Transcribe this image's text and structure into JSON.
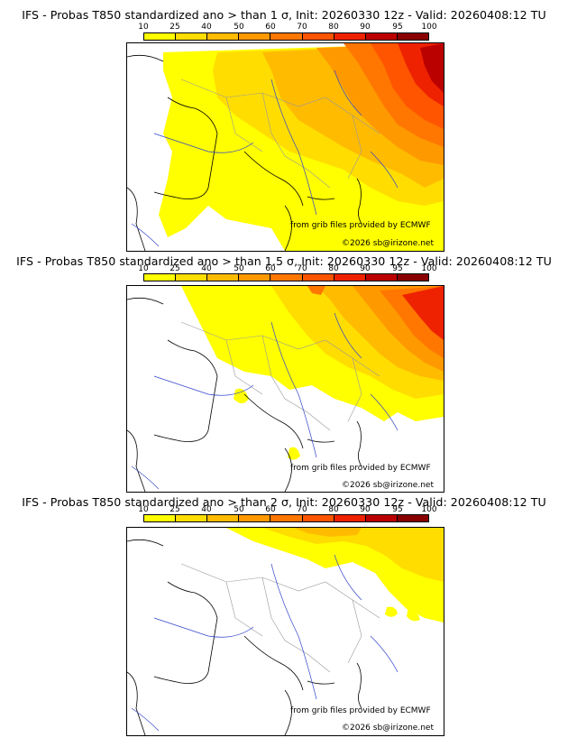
{
  "legend": {
    "ticks": [
      "10",
      "25",
      "40",
      "50",
      "60",
      "70",
      "80",
      "90",
      "95",
      "100"
    ],
    "colors": [
      "#ffff00",
      "#ffdd00",
      "#ffbb00",
      "#ff9900",
      "#ff7700",
      "#ff5500",
      "#ee2200",
      "#bb0000",
      "#880000"
    ]
  },
  "panels": [
    {
      "title": "IFS - Probas T850  standardized ano > than 1 σ, Init: 20260330 12z - Valid: 20260408:12 TU",
      "credit_source": "from grib files provided by ECMWF",
      "credit_copyright": "©2026 sb@irizone.net"
    },
    {
      "title": "IFS - Probas T850  standardized ano > than 1.5 σ, Init: 20260330 12z - Valid: 20260408:12 TU",
      "credit_source": "from grib files provided by ECMWF",
      "credit_copyright": "©2026 sb@irizone.net"
    },
    {
      "title": "IFS - Probas T850  standardized ano > than 2 σ, Init: 20260330 12z - Valid: 20260408:12 TU",
      "credit_source": "from grib files provided by ECMWF",
      "credit_copyright": "©2026 sb@irizone.net"
    }
  ]
}
